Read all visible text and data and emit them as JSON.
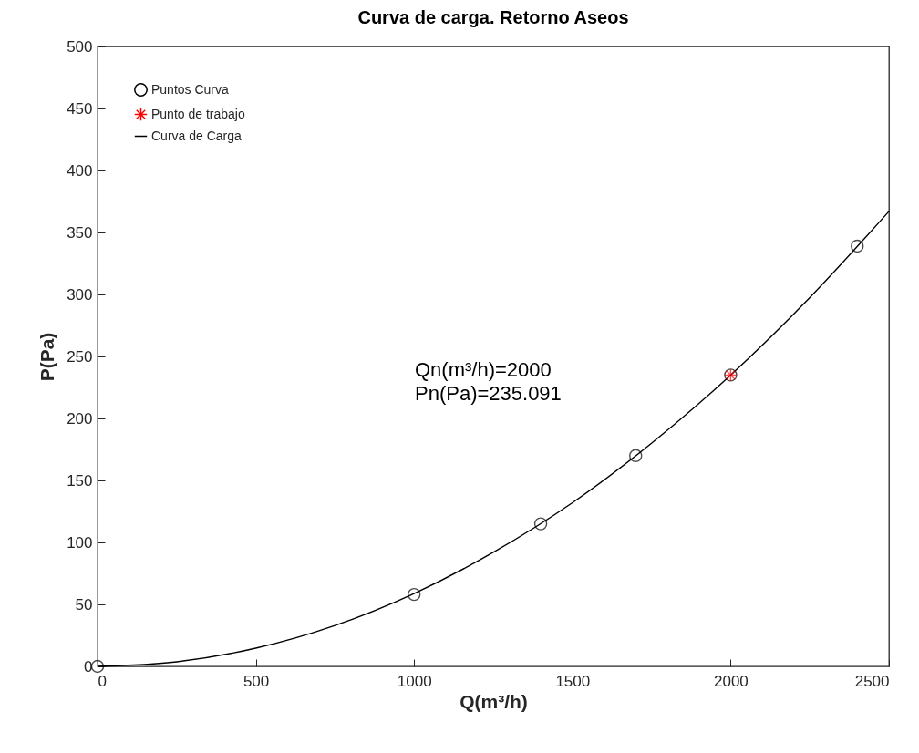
{
  "chart_data": {
    "type": "scatter",
    "title": "Curva de carga. Retorno Aseos",
    "xlabel": "Q(m³/h)",
    "ylabel": "P(Pa)",
    "xlim": [
      0,
      2500
    ],
    "xticks": [
      0,
      500,
      1000,
      1500,
      2000,
      2500
    ],
    "ylim": [
      0,
      500
    ],
    "yticks": [
      0,
      50,
      100,
      150,
      200,
      250,
      300,
      350,
      400,
      450,
      500
    ],
    "grid": false,
    "legend": "top left",
    "annotations": [
      "Qn(m³/h)=2000",
      "Pn(Pa)=235.091"
    ],
    "series": [
      {
        "name": "Puntos Curva",
        "marker": "circle",
        "color": "#000000",
        "x": [
          0,
          1000,
          1400,
          1700,
          2000,
          2400
        ],
        "values": [
          0,
          58,
          115,
          170,
          235,
          339
        ]
      },
      {
        "name": "Punto de trabajo",
        "marker": "cross",
        "color": "#ff0000",
        "x": [
          2000
        ],
        "values": [
          235
        ]
      },
      {
        "name": "Curva de Carga",
        "type": "line",
        "line_style": "solid",
        "color": "#000000",
        "x": [
          0,
          250,
          500,
          750,
          1000,
          1250,
          1500,
          1750,
          2000,
          2250,
          2500
        ],
        "values": [
          0,
          3.7,
          14.7,
          33,
          58.8,
          92,
          132,
          180,
          235,
          297.5,
          367
        ]
      }
    ]
  }
}
